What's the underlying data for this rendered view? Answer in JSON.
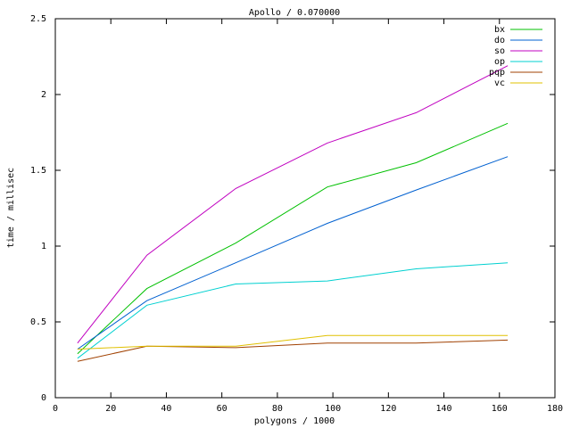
{
  "chart_data": {
    "type": "line",
    "title": "Apollo / 0.070000",
    "x_label": "polygons / 1000",
    "y_label": "time / millisec",
    "x": [
      8,
      33,
      65,
      98,
      130,
      163
    ],
    "series": [
      {
        "name": "bx",
        "color": "#00c000",
        "values": [
          0.29,
          0.72,
          1.02,
          1.39,
          1.55,
          1.81
        ]
      },
      {
        "name": "do",
        "color": "#0060d0",
        "values": [
          0.32,
          0.64,
          0.89,
          1.15,
          1.37,
          1.59
        ]
      },
      {
        "name": "so",
        "color": "#c000c0",
        "values": [
          0.36,
          0.94,
          1.38,
          1.68,
          1.88,
          2.19
        ]
      },
      {
        "name": "op",
        "color": "#00d0d0",
        "values": [
          0.26,
          0.61,
          0.75,
          0.77,
          0.85,
          0.89
        ]
      },
      {
        "name": "pqp",
        "color": "#a04000",
        "values": [
          0.24,
          0.34,
          0.33,
          0.36,
          0.36,
          0.38
        ]
      },
      {
        "name": "vc",
        "color": "#e0c000",
        "values": [
          0.32,
          0.34,
          0.34,
          0.41,
          0.41,
          0.41
        ]
      }
    ],
    "xlim": [
      0,
      180
    ],
    "xticks": [
      0,
      20,
      40,
      60,
      80,
      100,
      120,
      140,
      160,
      180
    ],
    "ylim": [
      0,
      2.5
    ],
    "yticks": [
      0,
      0.5,
      1,
      1.5,
      2,
      2.5
    ],
    "legend": "top-right",
    "grid": false
  }
}
